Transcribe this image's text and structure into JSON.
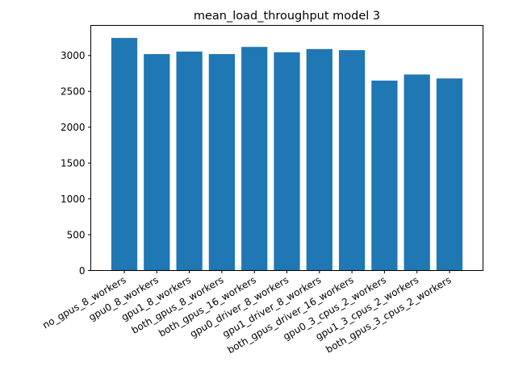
{
  "chart_data": {
    "type": "bar",
    "title": "mean_load_throughput model 3",
    "xlabel": "",
    "ylabel": "",
    "categories": [
      "no_gpus_8_workers",
      "gpu0_8_workers",
      "gpu1_8_workers",
      "both_gpus_8_workers",
      "both_gpus_16_workers",
      "gpu0_driver_8_workers",
      "gpu1_driver_8_workers",
      "both_gpus_driver_16_workers",
      "gpu0_3_cpus_2_workers",
      "gpu1_3_cpus_2_workers",
      "both_gpus_3_cpus_2_workers"
    ],
    "values": [
      3245,
      3020,
      3055,
      3020,
      3120,
      3045,
      3090,
      3075,
      2650,
      2735,
      2680
    ],
    "ylim": [
      0,
      3420
    ],
    "yticks": [
      0,
      500,
      1000,
      1500,
      2000,
      2500,
      3000
    ],
    "bar_color": "#1f77b4",
    "grid": false
  }
}
